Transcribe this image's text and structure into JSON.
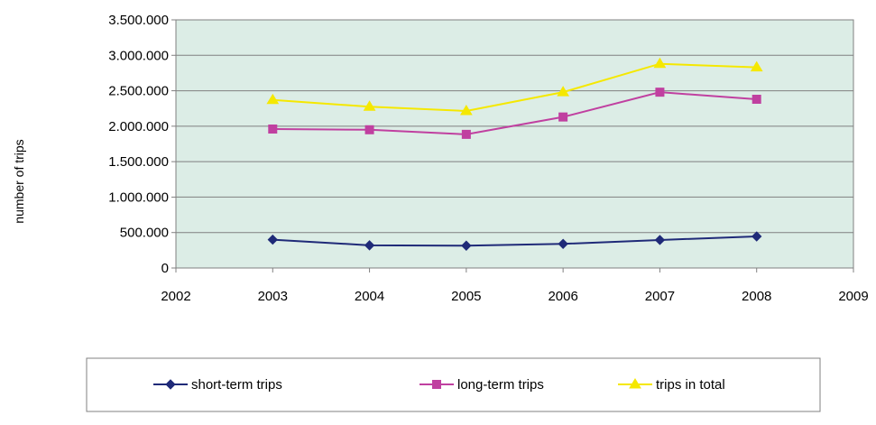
{
  "chart_data": {
    "type": "line",
    "title": "",
    "xlabel": "",
    "ylabel": "number of trips",
    "x": [
      2003,
      2004,
      2005,
      2006,
      2007,
      2008
    ],
    "xlim": [
      2002,
      2009
    ],
    "x_ticks": [
      2002,
      2003,
      2004,
      2005,
      2006,
      2007,
      2008,
      2009
    ],
    "x_tick_labels": [
      "2002",
      "2003",
      "2004",
      "2005",
      "2006",
      "2007",
      "2008",
      "2009"
    ],
    "ylim": [
      0,
      3500000
    ],
    "y_ticks": [
      0,
      500000,
      1000000,
      1500000,
      2000000,
      2500000,
      3000000,
      3500000
    ],
    "y_tick_labels": [
      "0",
      "500.000",
      "1.000.000",
      "1.500.000",
      "2.000.000",
      "2.500.000",
      "3.000.000",
      "3.500.000"
    ],
    "grid": "horizontal",
    "plot_background": "#dcede6",
    "legend_position": "bottom",
    "series": [
      {
        "name": "short-term trips",
        "values": [
          400000,
          320000,
          315000,
          340000,
          395000,
          445000
        ],
        "color": "#1f2a78",
        "marker": "diamond"
      },
      {
        "name": "long-term trips",
        "values": [
          1960000,
          1950000,
          1885000,
          2130000,
          2480000,
          2380000
        ],
        "color": "#c040a0",
        "marker": "square"
      },
      {
        "name": "trips in total",
        "values": [
          2370000,
          2275000,
          2215000,
          2480000,
          2880000,
          2830000
        ],
        "color": "#f5e800",
        "marker": "triangle"
      }
    ]
  }
}
